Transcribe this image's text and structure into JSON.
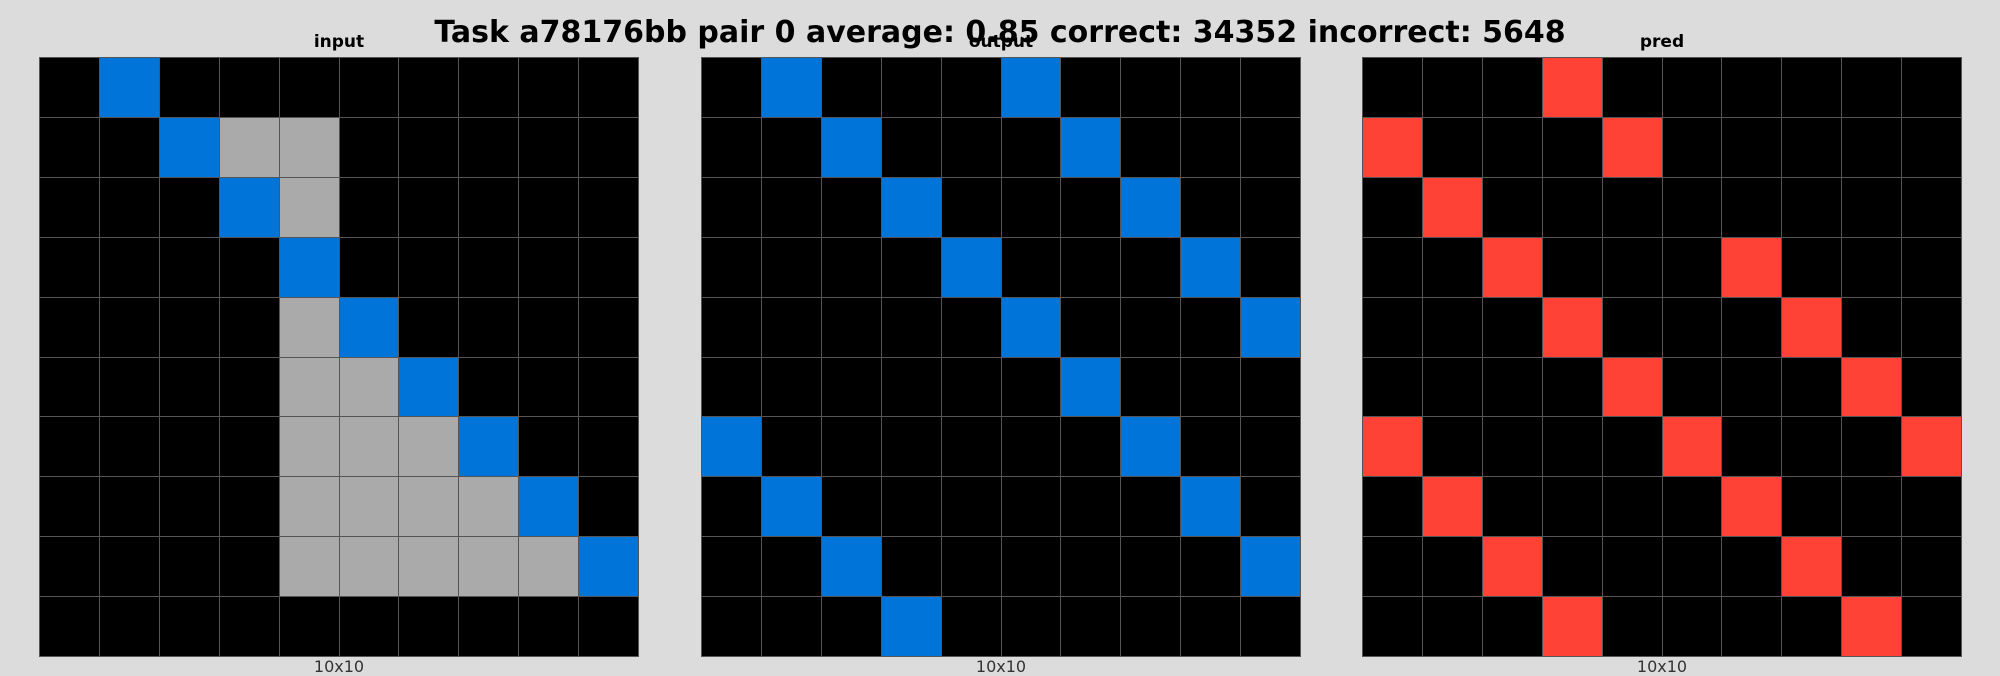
{
  "title": "Task a78176bb pair 0 average: 0.85 correct: 34352 incorrect: 5648",
  "palette": {
    "0": "#000000",
    "1": "#0074d9",
    "2": "#ff4136",
    "5": "#aaaaaa"
  },
  "panels": [
    {
      "label": "input",
      "dims": "10x10",
      "grid": [
        [
          0,
          1,
          0,
          0,
          0,
          0,
          0,
          0,
          0,
          0
        ],
        [
          0,
          0,
          1,
          5,
          5,
          0,
          0,
          0,
          0,
          0
        ],
        [
          0,
          0,
          0,
          1,
          5,
          0,
          0,
          0,
          0,
          0
        ],
        [
          0,
          0,
          0,
          0,
          1,
          0,
          0,
          0,
          0,
          0
        ],
        [
          0,
          0,
          0,
          0,
          5,
          1,
          0,
          0,
          0,
          0
        ],
        [
          0,
          0,
          0,
          0,
          5,
          5,
          1,
          0,
          0,
          0
        ],
        [
          0,
          0,
          0,
          0,
          5,
          5,
          5,
          1,
          0,
          0
        ],
        [
          0,
          0,
          0,
          0,
          5,
          5,
          5,
          5,
          1,
          0
        ],
        [
          0,
          0,
          0,
          0,
          5,
          5,
          5,
          5,
          5,
          1
        ],
        [
          0,
          0,
          0,
          0,
          0,
          0,
          0,
          0,
          0,
          0
        ]
      ]
    },
    {
      "label": "output",
      "dims": "10x10",
      "grid": [
        [
          0,
          1,
          0,
          0,
          0,
          1,
          0,
          0,
          0,
          0
        ],
        [
          0,
          0,
          1,
          0,
          0,
          0,
          1,
          0,
          0,
          0
        ],
        [
          0,
          0,
          0,
          1,
          0,
          0,
          0,
          1,
          0,
          0
        ],
        [
          0,
          0,
          0,
          0,
          1,
          0,
          0,
          0,
          1,
          0
        ],
        [
          0,
          0,
          0,
          0,
          0,
          1,
          0,
          0,
          0,
          1
        ],
        [
          0,
          0,
          0,
          0,
          0,
          0,
          1,
          0,
          0,
          0
        ],
        [
          1,
          0,
          0,
          0,
          0,
          0,
          0,
          1,
          0,
          0
        ],
        [
          0,
          1,
          0,
          0,
          0,
          0,
          0,
          0,
          1,
          0
        ],
        [
          0,
          0,
          1,
          0,
          0,
          0,
          0,
          0,
          0,
          1
        ],
        [
          0,
          0,
          0,
          1,
          0,
          0,
          0,
          0,
          0,
          0
        ]
      ]
    },
    {
      "label": "pred",
      "dims": "10x10",
      "grid": [
        [
          0,
          0,
          0,
          2,
          0,
          0,
          0,
          0,
          0,
          0
        ],
        [
          2,
          0,
          0,
          0,
          2,
          0,
          0,
          0,
          0,
          0
        ],
        [
          0,
          2,
          0,
          0,
          0,
          0,
          0,
          0,
          0,
          0
        ],
        [
          0,
          0,
          2,
          0,
          0,
          0,
          2,
          0,
          0,
          0
        ],
        [
          0,
          0,
          0,
          2,
          0,
          0,
          0,
          2,
          0,
          0
        ],
        [
          0,
          0,
          0,
          0,
          2,
          0,
          0,
          0,
          2,
          0
        ],
        [
          2,
          0,
          0,
          0,
          0,
          2,
          0,
          0,
          0,
          2
        ],
        [
          0,
          2,
          0,
          0,
          0,
          0,
          2,
          0,
          0,
          0
        ],
        [
          0,
          0,
          2,
          0,
          0,
          0,
          0,
          2,
          0,
          0
        ],
        [
          0,
          0,
          0,
          2,
          0,
          0,
          0,
          0,
          2,
          0
        ]
      ]
    }
  ]
}
